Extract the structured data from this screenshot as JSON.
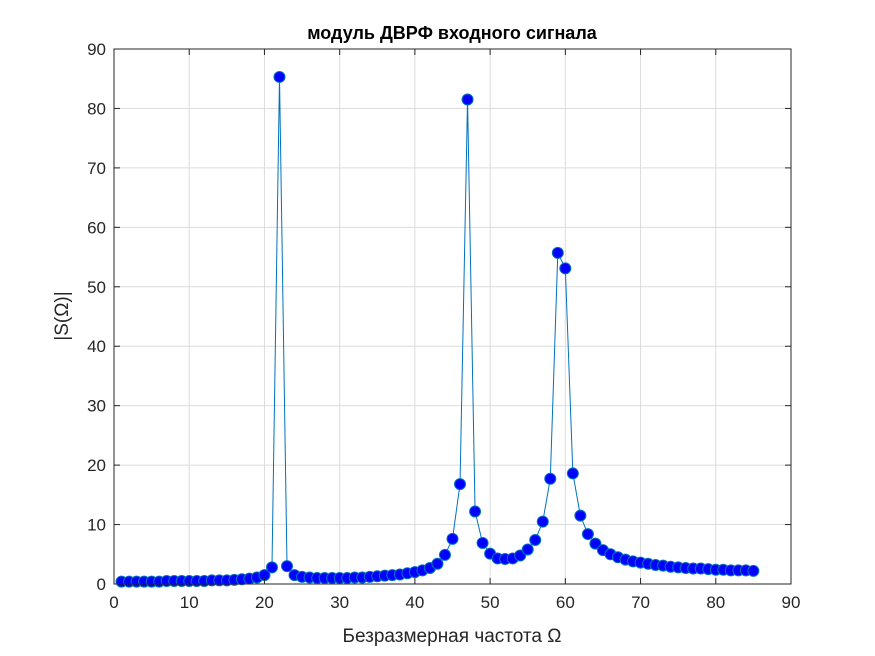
{
  "chart_data": {
    "type": "line",
    "title": "модуль ДВРФ входного сигнала",
    "xlabel": "Безразмерная частота Ω",
    "ylabel": "|S(Ω)|",
    "xlim": [
      0,
      90
    ],
    "ylim": [
      0,
      90
    ],
    "xticks": [
      0,
      10,
      20,
      30,
      40,
      50,
      60,
      70,
      80,
      90
    ],
    "yticks": [
      0,
      10,
      20,
      30,
      40,
      50,
      60,
      70,
      80,
      90
    ],
    "grid": true,
    "line_color": "#0072bd",
    "marker_color": "#0000ff",
    "marker": "circle",
    "x": [
      1,
      2,
      3,
      4,
      5,
      6,
      7,
      8,
      9,
      10,
      11,
      12,
      13,
      14,
      15,
      16,
      17,
      18,
      19,
      20,
      21,
      22,
      23,
      24,
      25,
      26,
      27,
      28,
      29,
      30,
      31,
      32,
      33,
      34,
      35,
      36,
      37,
      38,
      39,
      40,
      41,
      42,
      43,
      44,
      45,
      46,
      47,
      48,
      49,
      50,
      51,
      52,
      53,
      54,
      55,
      56,
      57,
      58,
      59,
      60,
      61,
      62,
      63,
      64,
      65,
      66,
      67,
      68,
      69,
      70,
      71,
      72,
      73,
      74,
      75,
      76,
      77,
      78,
      79,
      80,
      81,
      82,
      83,
      84,
      85
    ],
    "y": [
      0.4,
      0.4,
      0.4,
      0.4,
      0.4,
      0.4,
      0.5,
      0.5,
      0.5,
      0.5,
      0.5,
      0.5,
      0.6,
      0.6,
      0.6,
      0.7,
      0.8,
      0.9,
      1.1,
      1.5,
      2.8,
      85.3,
      3.0,
      1.5,
      1.2,
      1.1,
      1.0,
      1.0,
      1.0,
      1.0,
      1.0,
      1.1,
      1.1,
      1.2,
      1.3,
      1.4,
      1.5,
      1.6,
      1.8,
      2.0,
      2.3,
      2.7,
      3.4,
      4.9,
      7.6,
      16.8,
      81.5,
      12.2,
      6.9,
      5.1,
      4.3,
      4.2,
      4.3,
      4.8,
      5.8,
      7.4,
      10.5,
      17.7,
      55.7,
      53.1,
      18.6,
      11.5,
      8.4,
      6.8,
      5.7,
      5.0,
      4.5,
      4.1,
      3.8,
      3.6,
      3.4,
      3.2,
      3.1,
      2.9,
      2.8,
      2.7,
      2.6,
      2.6,
      2.5,
      2.4,
      2.4,
      2.3,
      2.3,
      2.3,
      2.2
    ]
  }
}
